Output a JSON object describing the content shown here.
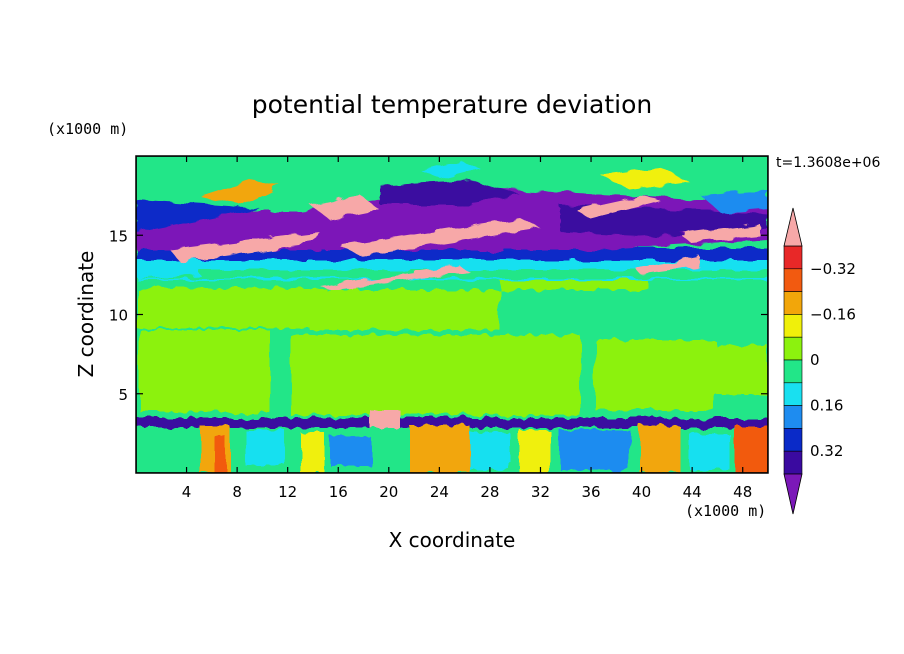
{
  "chart_data": {
    "type": "heatmap",
    "title": "potential temperature deviation",
    "xlabel": "X coordinate",
    "ylabel": "Z coordinate",
    "x_unit_label": "(x1000 m)",
    "y_unit_label": "(x1000 m)",
    "time_label": "t=1.3608e+06",
    "xlim": [
      0,
      50
    ],
    "ylim": [
      0,
      20
    ],
    "x_ticks": [
      4,
      8,
      12,
      16,
      20,
      24,
      28,
      32,
      36,
      40,
      44,
      48
    ],
    "y_ticks": [
      5,
      10,
      15
    ],
    "x_tick_labels": [
      "4",
      "8",
      "12",
      "16",
      "20",
      "24",
      "28",
      "32",
      "36",
      "40",
      "44",
      "48"
    ],
    "y_tick_labels": [
      "5",
      "10",
      "15"
    ],
    "colorbar": {
      "levels": [
        -0.4,
        -0.32,
        -0.24,
        -0.16,
        -0.08,
        0,
        0.08,
        0.16,
        0.24,
        0.32,
        0.4
      ],
      "labeled_levels": [
        -0.32,
        -0.16,
        0,
        0.16,
        0.32
      ],
      "tick_labels": [
        "0.32",
        "0.16",
        "0",
        "−0.16",
        "−0.32"
      ],
      "colors": [
        "#7b18b8",
        "#3a0aa0",
        "#0a2ac8",
        "#1e8cf0",
        "#19e0f0",
        "#22e688",
        "#8cf20e",
        "#f0f00a",
        "#f2a60a",
        "#f25a10",
        "#e82828",
        "#f7a8a8"
      ],
      "extend": "both"
    },
    "features": [
      {
        "kind": "lower layer turbulent mix",
        "z_range": [
          0,
          3.7
        ],
        "value_range": [
          -0.4,
          0.4
        ]
      },
      {
        "kind": "near-zero layer",
        "z_range": [
          3.7,
          12
        ],
        "value_range": [
          0,
          0.08
        ]
      },
      {
        "kind": "tilted bands",
        "z_range": [
          11.5,
          19
        ],
        "value_range": [
          -0.4,
          0.4
        ]
      }
    ],
    "grid": false
  }
}
